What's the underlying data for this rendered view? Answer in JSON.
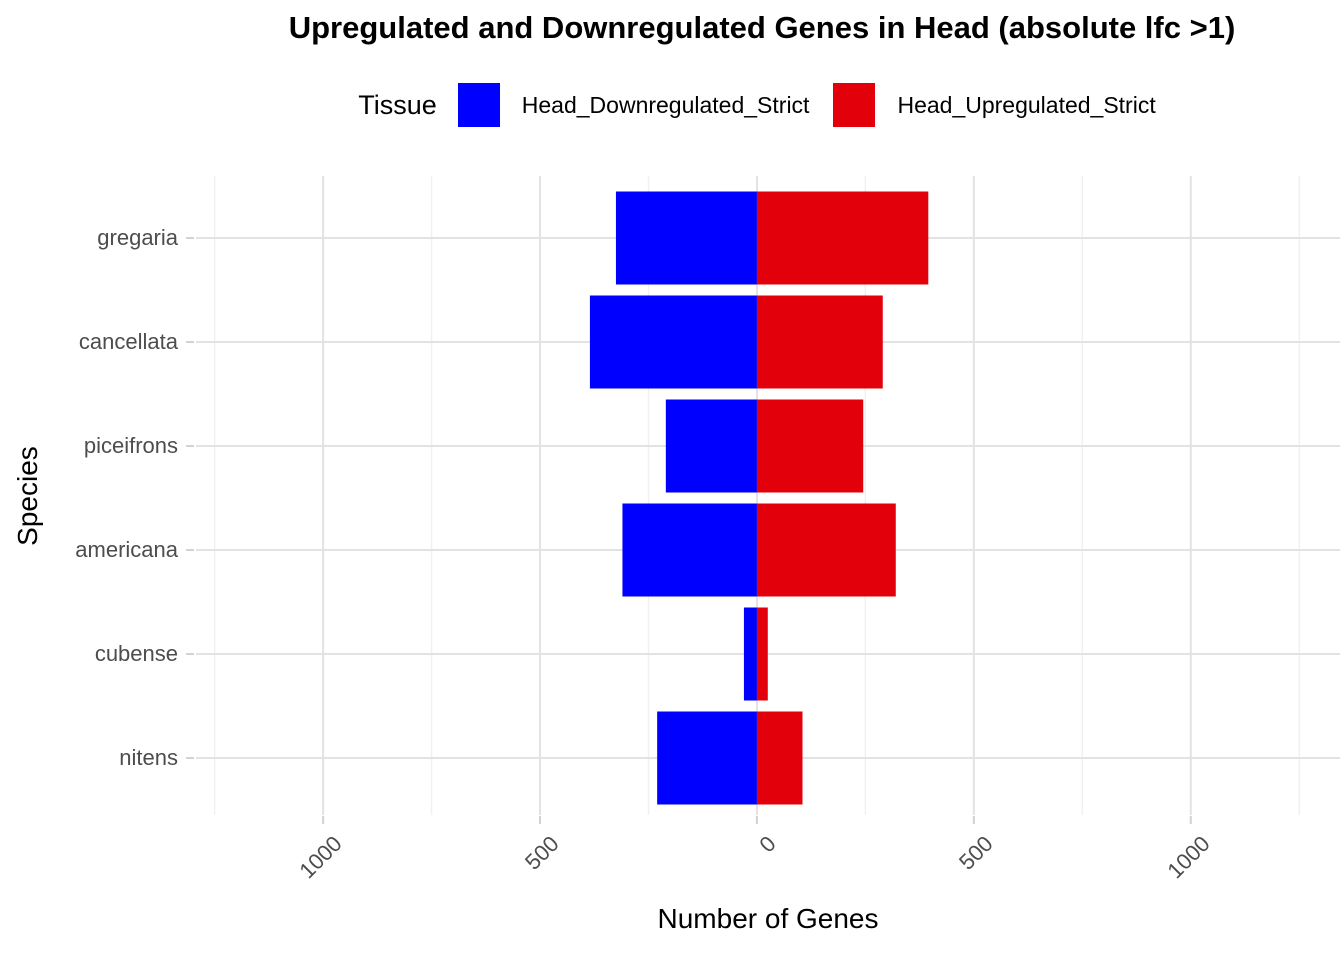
{
  "page": {
    "background": "#FFFFFF"
  },
  "chart_data": {
    "type": "bar",
    "orientation": "horizontal_diverging",
    "title": "Upregulated and Downregulated Genes in Head (absolute lfc >1)",
    "xlabel": "Number of Genes",
    "ylabel": "Species",
    "legend": {
      "title": "Tissue",
      "position": "top",
      "entries": [
        {
          "label": "Head_Downregulated_Strict",
          "color": "#0000FF"
        },
        {
          "label": "Head_Upregulated_Strict",
          "color": "#E2000B"
        }
      ]
    },
    "categories": [
      "gregaria",
      "cancellata",
      "piceifrons",
      "americana",
      "cubense",
      "nitens"
    ],
    "series": [
      {
        "name": "Head_Downregulated_Strict",
        "side": "negative",
        "color": "#0000FF",
        "values": [
          325,
          385,
          210,
          310,
          30,
          230
        ]
      },
      {
        "name": "Head_Upregulated_Strict",
        "side": "positive",
        "color": "#E2000B",
        "values": [
          395,
          290,
          245,
          320,
          25,
          105
        ]
      }
    ],
    "x_ticks": [
      -1000,
      -500,
      0,
      500,
      1000
    ],
    "x_tick_labels": [
      "1000",
      "500",
      "0",
      "500",
      "1000"
    ],
    "x_minor_ticks": [
      -1250,
      -750,
      -250,
      250,
      750,
      1250
    ],
    "xlim": [
      -1293,
      1344
    ],
    "grid": true,
    "styles": {
      "grid_major": "#E2E2E2",
      "grid_minor": "#F0F0F0",
      "tick_color": "#D2D2D2",
      "axis_text_color": "#4D4D4D",
      "title_color": "#000000"
    }
  }
}
